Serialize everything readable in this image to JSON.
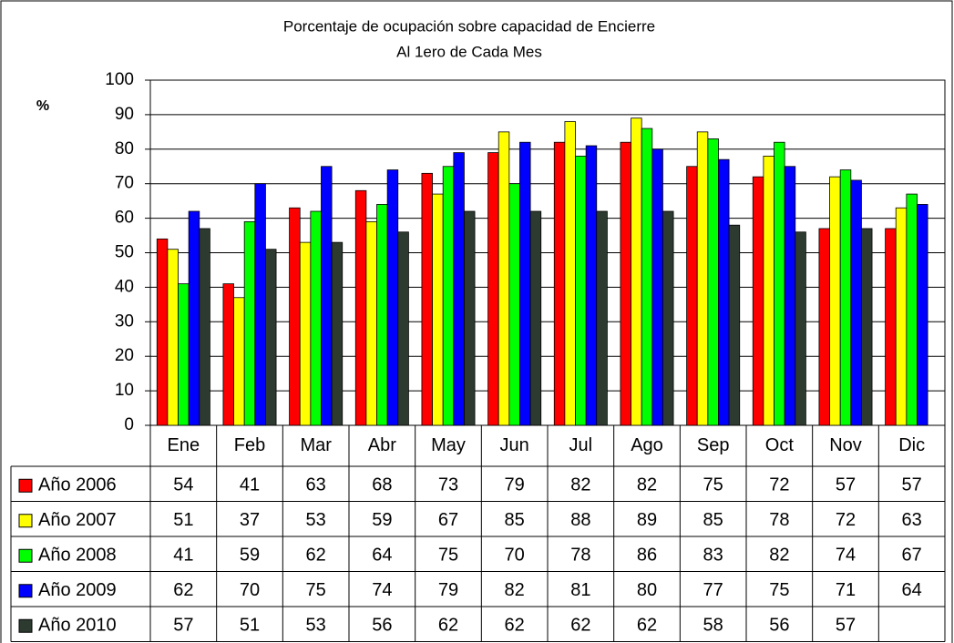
{
  "chart_data": {
    "type": "bar",
    "title": "Porcentaje de ocupación sobre capacidad de Encierre",
    "subtitle": "Al 1ero de Cada Mes",
    "y_label": "%",
    "categories": [
      "Ene",
      "Feb",
      "Mar",
      "Abr",
      "May",
      "Jun",
      "Jul",
      "Ago",
      "Sep",
      "Oct",
      "Nov",
      "Dic"
    ],
    "series": [
      {
        "name": "Año 2006",
        "color": "#ff0000",
        "values": [
          54,
          41,
          63,
          68,
          73,
          79,
          82,
          82,
          75,
          72,
          57,
          57
        ]
      },
      {
        "name": "Año 2007",
        "color": "#ffff00",
        "values": [
          51,
          37,
          53,
          59,
          67,
          85,
          88,
          89,
          85,
          78,
          72,
          63
        ]
      },
      {
        "name": "Año 2008",
        "color": "#00ff00",
        "values": [
          41,
          59,
          62,
          64,
          75,
          70,
          78,
          86,
          83,
          82,
          74,
          67
        ]
      },
      {
        "name": "Año 2009",
        "color": "#0000ff",
        "values": [
          62,
          70,
          75,
          74,
          79,
          82,
          81,
          80,
          77,
          75,
          71,
          64
        ]
      },
      {
        "name": "Año 2010",
        "color": "#2d3a30",
        "values": [
          57,
          51,
          53,
          56,
          62,
          62,
          62,
          62,
          58,
          56,
          57,
          null
        ]
      }
    ],
    "ylim": [
      0,
      100
    ],
    "yticks": [
      0,
      10,
      20,
      30,
      40,
      50,
      60,
      70,
      80,
      90,
      100
    ],
    "grid": true,
    "data_table": true
  }
}
